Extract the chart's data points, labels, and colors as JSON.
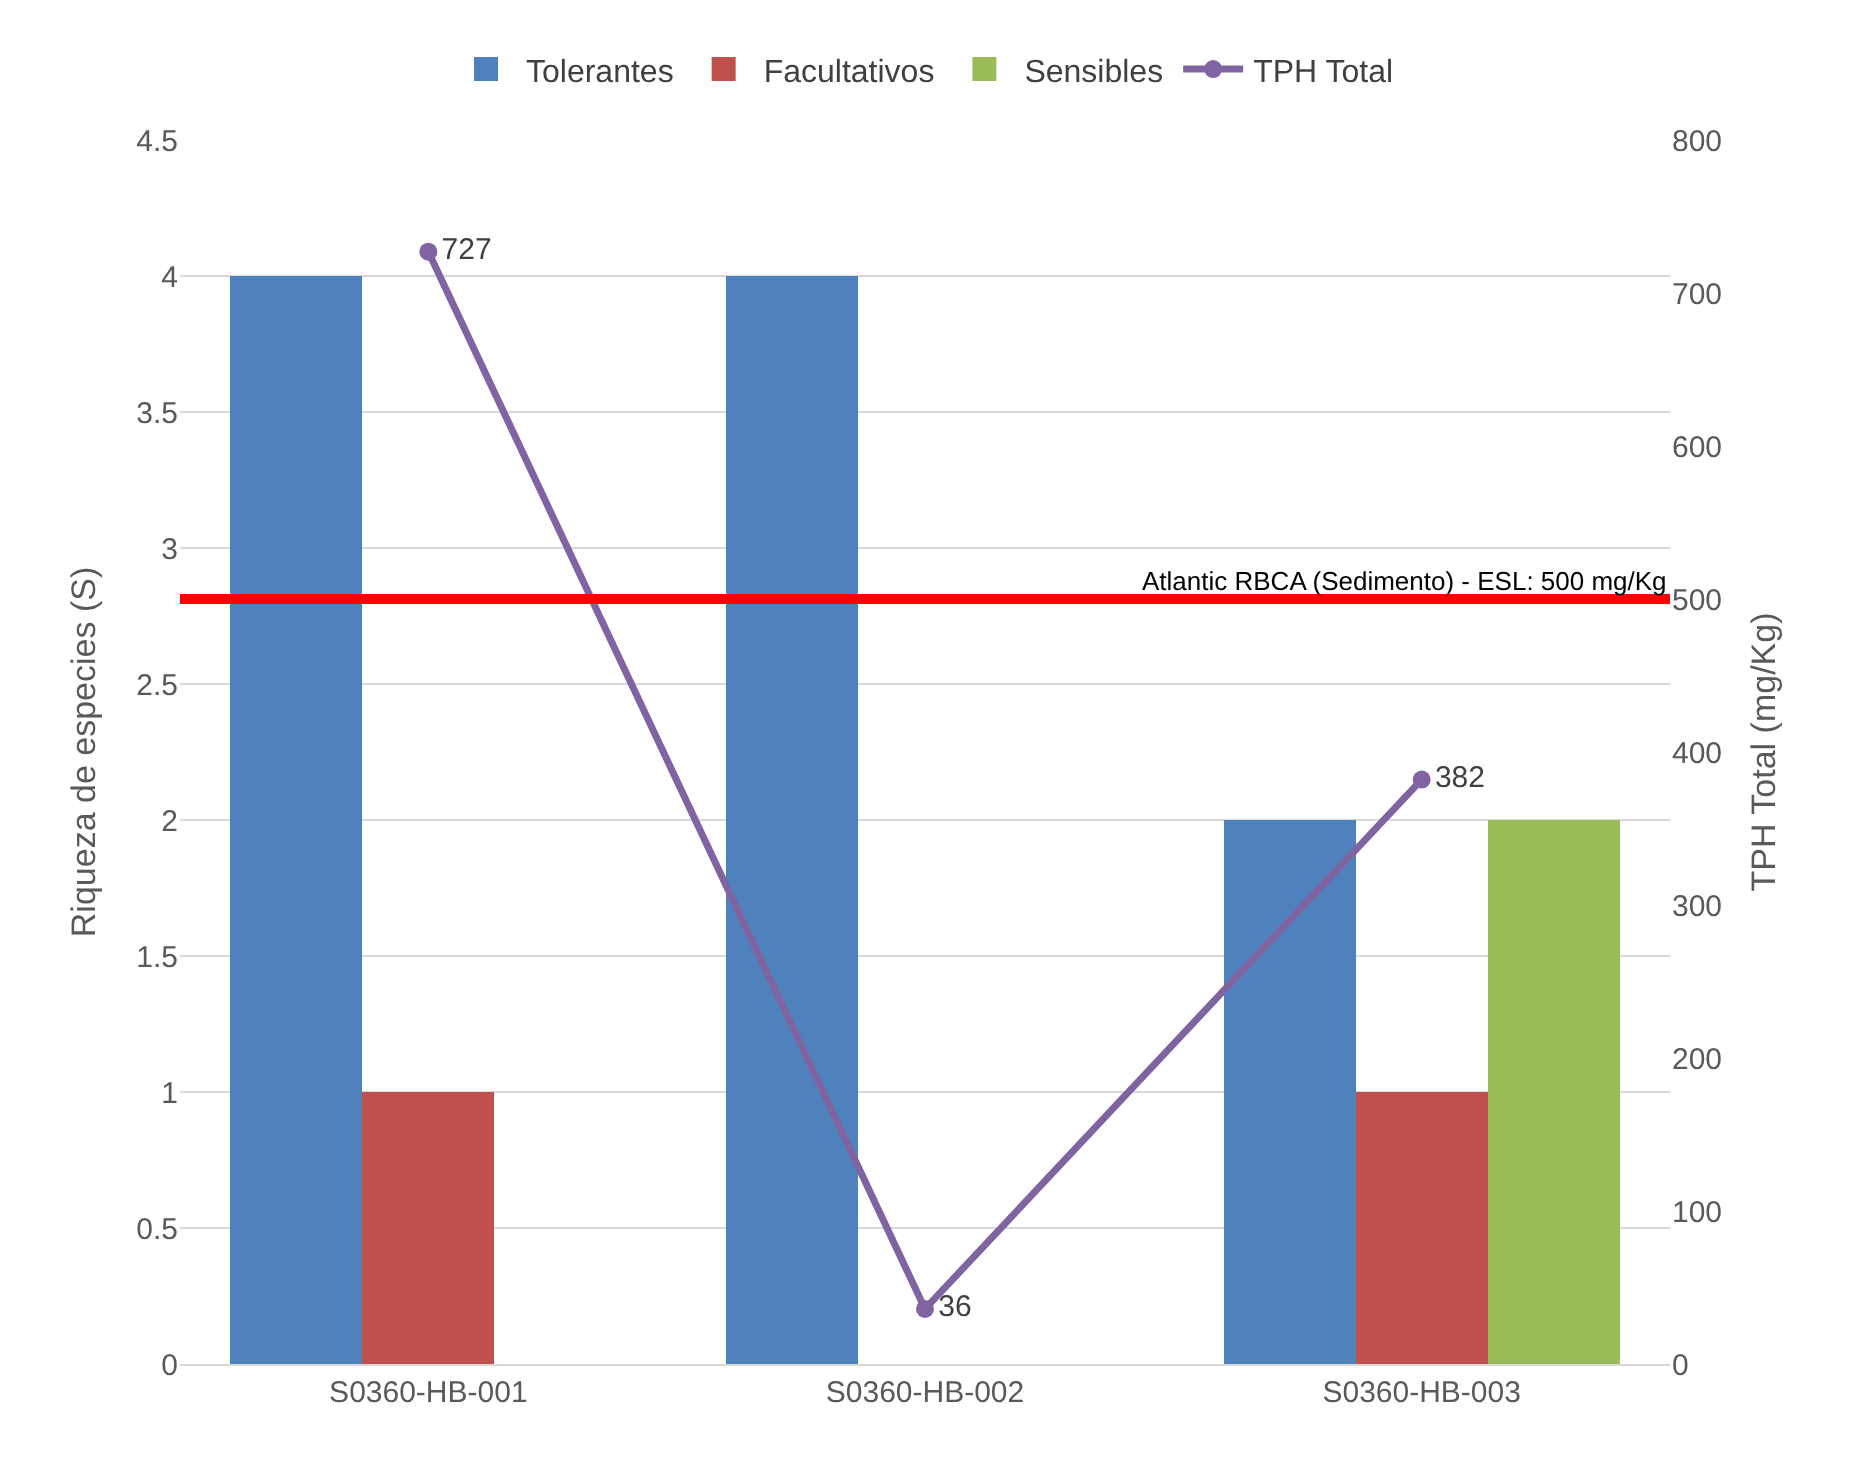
{
  "chart_data": {
    "type": "bar",
    "categories": [
      "S0360-HB-001",
      "S0360-HB-002",
      "S0360-HB-003"
    ],
    "series": [
      {
        "name": "Tolerantes",
        "color": "#4f81bd",
        "values": [
          4,
          4,
          2
        ]
      },
      {
        "name": "Facultativos",
        "color": "#c0504d",
        "values": [
          1,
          0,
          1
        ]
      },
      {
        "name": "Sensibles",
        "color": "#9bbb59",
        "values": [
          0,
          0,
          2
        ]
      },
      {
        "name": "TPH Total",
        "type": "line",
        "axis": "y2",
        "color": "#8064a2",
        "values": [
          727,
          36,
          382
        ],
        "value_labels": [
          "727",
          "36",
          "382"
        ],
        "marker": "circle"
      }
    ],
    "ylabel": "Riqueza de especies (S)",
    "y2label": "TPH Total (mg/Kg)",
    "ylim": [
      0,
      4.5
    ],
    "yticks": [
      0,
      0.5,
      1,
      1.5,
      2,
      2.5,
      3,
      3.5,
      4,
      4.5
    ],
    "y2lim": [
      0,
      800
    ],
    "y2ticks": [
      0,
      100,
      200,
      300,
      400,
      500,
      600,
      700,
      800
    ],
    "ref_lines": [
      {
        "axis": "y2",
        "value": 500,
        "label": "Atlantic RBCA (Sedimento) - ESL: 500 mg/Kg",
        "color": "#ff0000"
      }
    ],
    "grid": "y",
    "legend": "top"
  }
}
